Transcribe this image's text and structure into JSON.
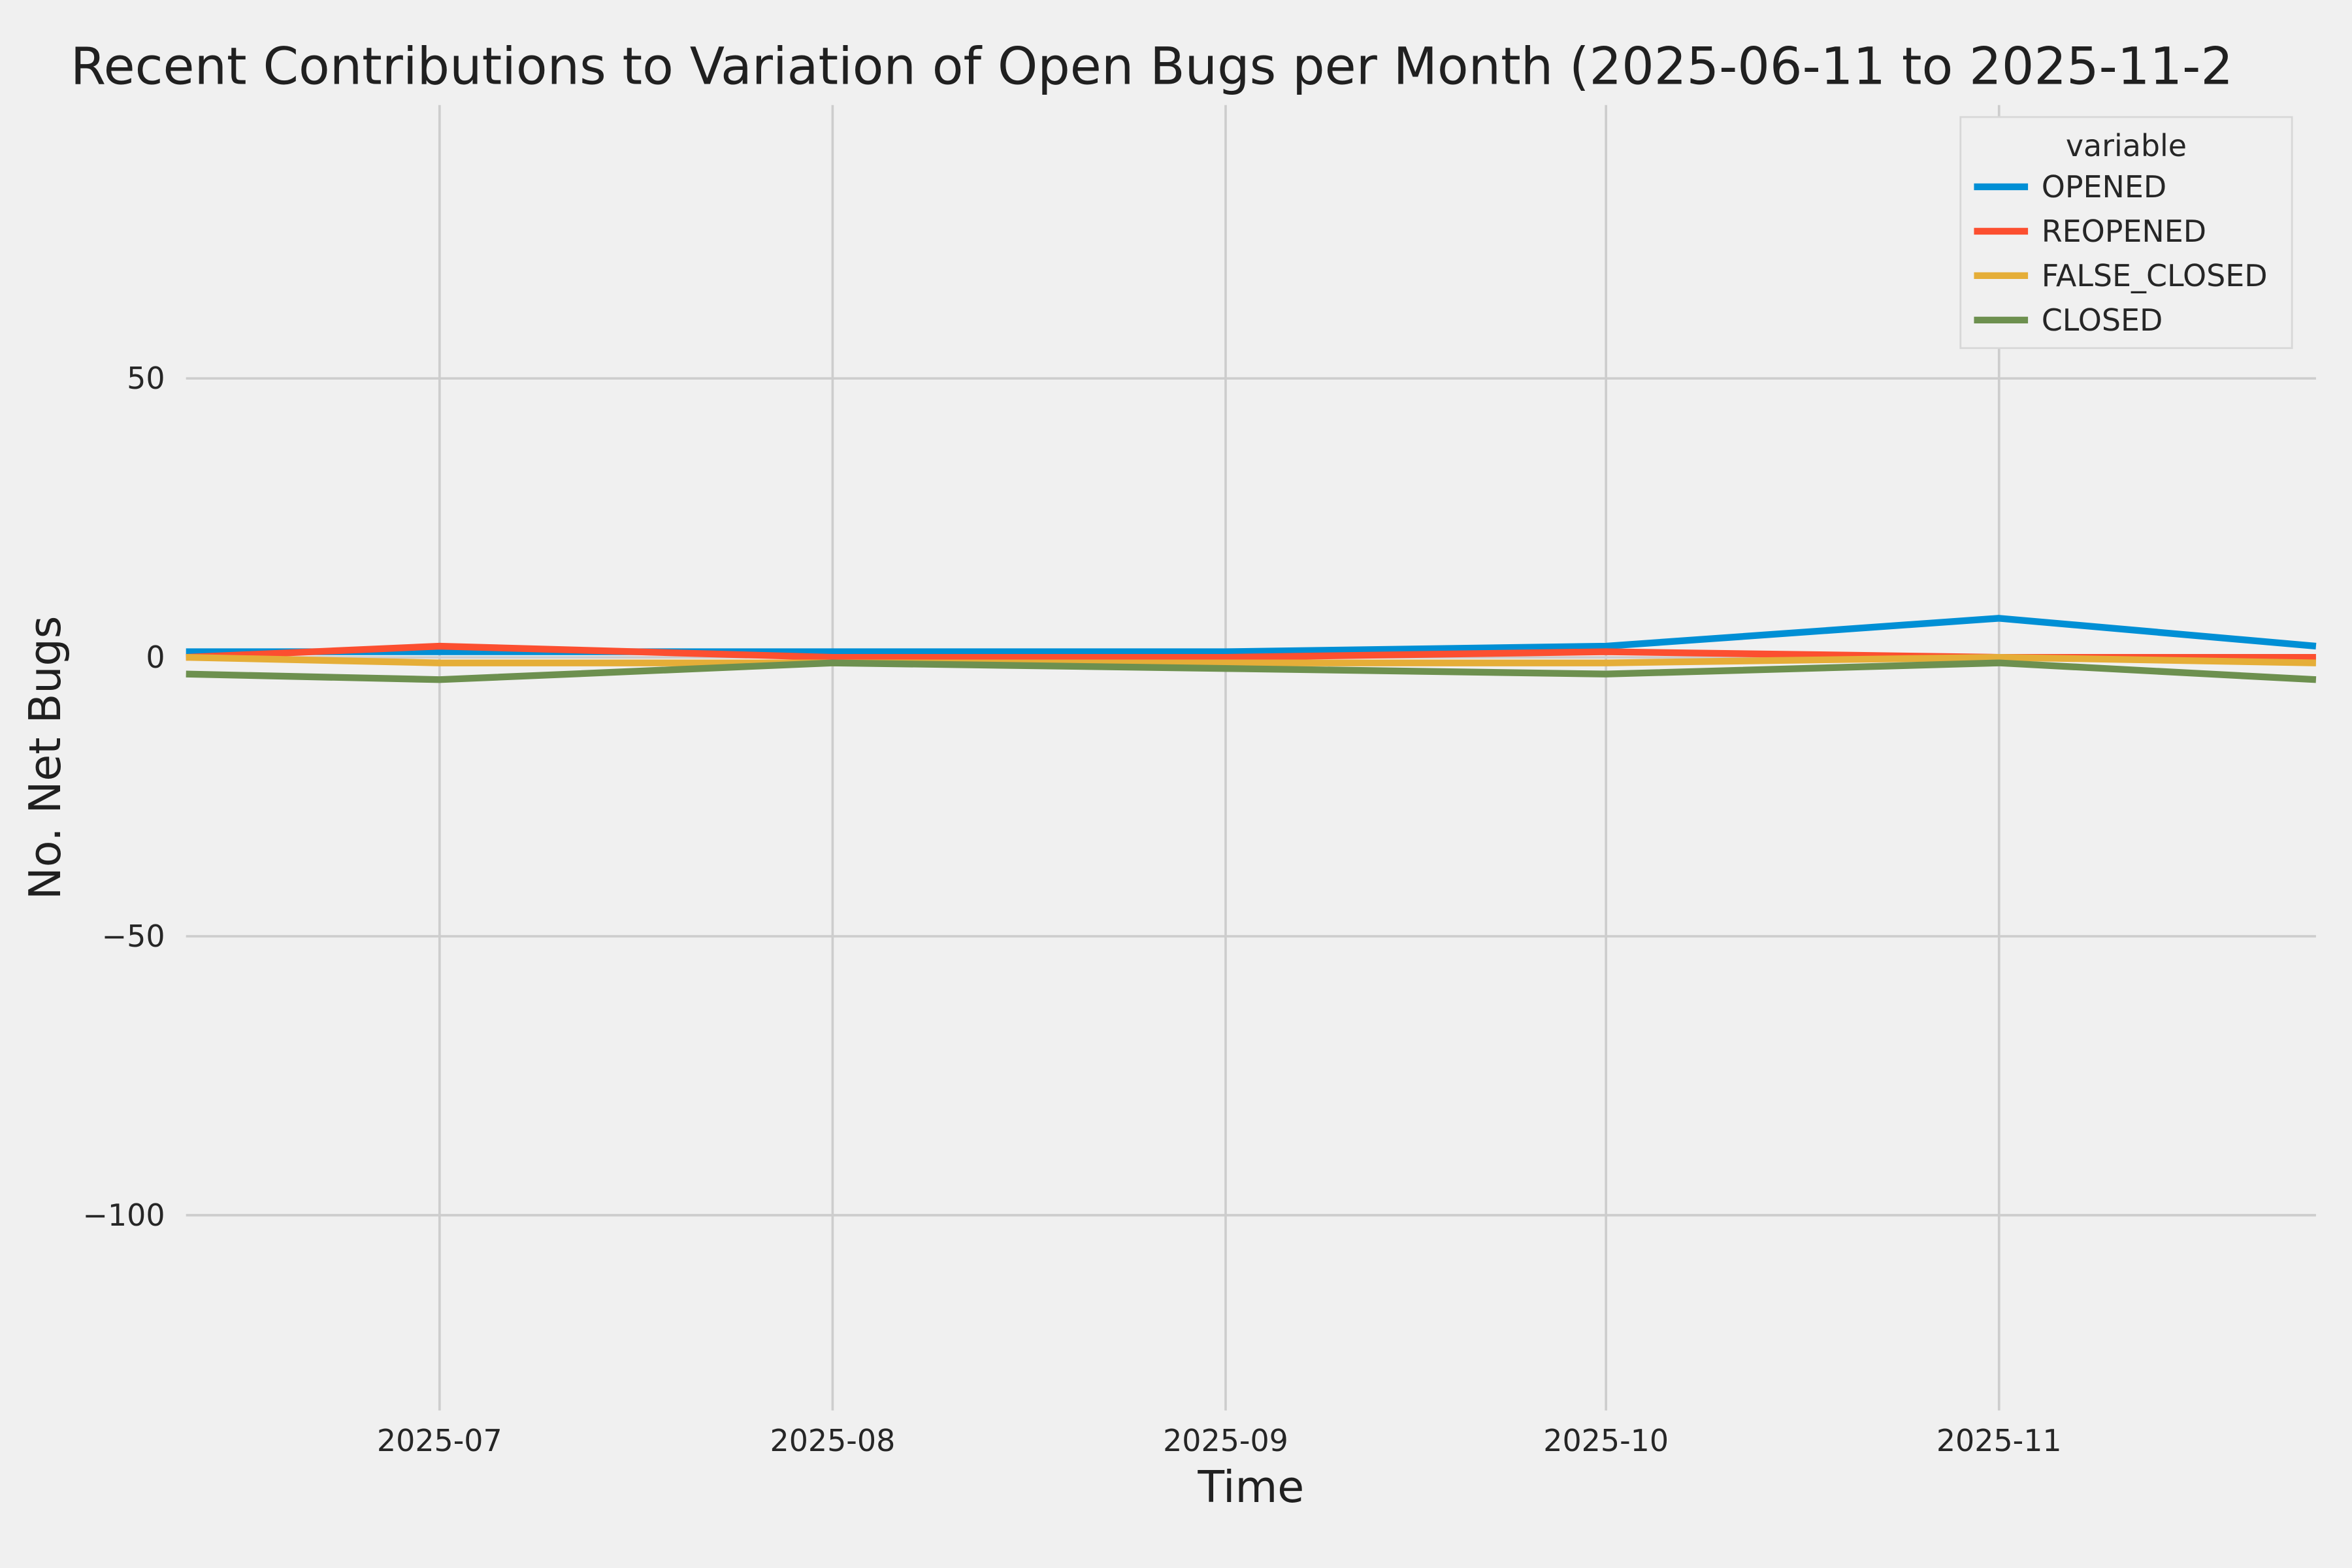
{
  "figure": {
    "background_color": "#f0f0f0",
    "grid_color": "#cdcdcd",
    "text_color": "#262626"
  },
  "chart_data": {
    "type": "line",
    "title": "Recent Contributions to Variation of Open Bugs per Month (2025-06-11 to 2025-11-2",
    "xlabel": "Time",
    "ylabel": "No. Net Bugs",
    "x": [
      "2025-06-11",
      "2025-07-01",
      "2025-08-01",
      "2025-09-01",
      "2025-10-01",
      "2025-11-01",
      "2025-11-26"
    ],
    "x_days": [
      0,
      20,
      51,
      82,
      112,
      143,
      168
    ],
    "x_ticks": [
      {
        "label": "2025-07",
        "day": 20
      },
      {
        "label": "2025-08",
        "day": 51
      },
      {
        "label": "2025-09",
        "day": 82
      },
      {
        "label": "2025-10",
        "day": 112
      },
      {
        "label": "2025-11",
        "day": 143
      }
    ],
    "y_ticks": [
      50,
      0,
      -50,
      -100
    ],
    "ylim": [
      -135,
      99
    ],
    "grid": true,
    "legend": {
      "title": "variable",
      "position": "upper right",
      "entries": [
        "OPENED",
        "REOPENED",
        "FALSE_CLOSED",
        "CLOSED"
      ]
    },
    "series": [
      {
        "name": "OPENED",
        "color": "#008fd5",
        "values": [
          1,
          1,
          1,
          1,
          2,
          7,
          2
        ]
      },
      {
        "name": "REOPENED",
        "color": "#fc4f30",
        "values": [
          0,
          2,
          0,
          0,
          1,
          0,
          0
        ]
      },
      {
        "name": "FALSE_CLOSED",
        "color": "#e5ae38",
        "values": [
          0,
          -1,
          -1,
          -1,
          -1,
          0,
          -1
        ]
      },
      {
        "name": "CLOSED",
        "color": "#6d904f",
        "values": [
          -3,
          -4,
          -1,
          -2,
          -3,
          -1,
          -4
        ]
      }
    ]
  }
}
